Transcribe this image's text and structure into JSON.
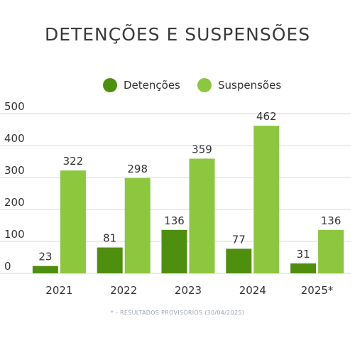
{
  "chart_data": {
    "type": "bar",
    "title": "DETENÇÕES E SUSPENSÕES",
    "categories": [
      "2021",
      "2022",
      "2023",
      "2024",
      "2025*"
    ],
    "series": [
      {
        "name": "Detenções",
        "color": "#4f8f0f",
        "values": [
          23,
          81,
          136,
          77,
          31
        ]
      },
      {
        "name": "Suspensões",
        "color": "#8dc63f",
        "values": [
          322,
          298,
          359,
          462,
          136
        ]
      }
    ],
    "ylim": [
      0,
      500
    ],
    "yticks": [
      "0",
      "100",
      "200",
      "300",
      "400",
      "500"
    ],
    "grid": true,
    "legend": "top-center",
    "footnote": "* - RESULTADOS PROVISÓRIOS (30/04/2025)"
  }
}
